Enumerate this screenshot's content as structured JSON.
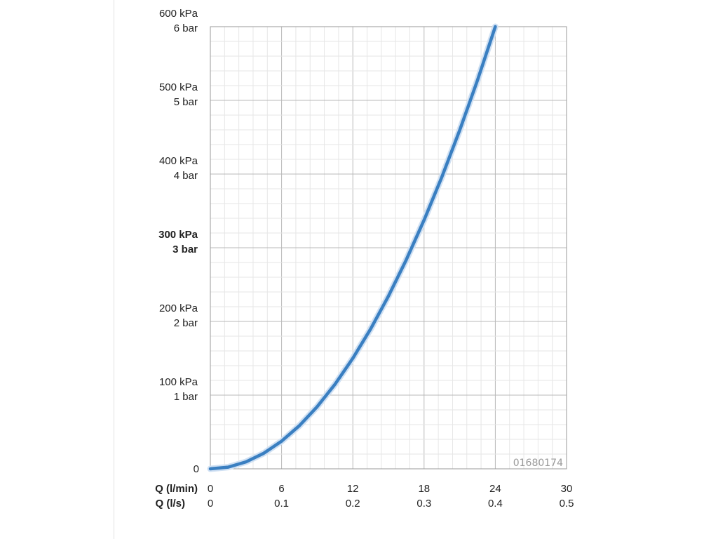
{
  "chart_data": {
    "type": "line",
    "code_label": "01680174",
    "x_primary": {
      "title": "Q (l/min)",
      "ticks": [
        "0",
        "6",
        "12",
        "18",
        "24",
        "30"
      ],
      "range": [
        0,
        30
      ]
    },
    "x_secondary": {
      "title": "Q (l/s)",
      "ticks": [
        "0",
        "0.1",
        "0.2",
        "0.3",
        "0.4",
        "0.5"
      ]
    },
    "y_axis": {
      "range": [
        0,
        600
      ],
      "unit": "kPa",
      "ticks": [
        {
          "value": 0,
          "kpa": "0",
          "bar": ""
        },
        {
          "value": 100,
          "kpa": "100 kPa",
          "bar": "1 bar"
        },
        {
          "value": 200,
          "kpa": "200 kPa",
          "bar": "2 bar"
        },
        {
          "value": 300,
          "kpa": "300 kPa",
          "bar": "3 bar",
          "bold": true
        },
        {
          "value": 400,
          "kpa": "400 kPa",
          "bar": "4 bar"
        },
        {
          "value": 500,
          "kpa": "500 kPa",
          "bar": "5 bar"
        },
        {
          "value": 600,
          "kpa": "600 kPa",
          "bar": "6 bar"
        }
      ]
    },
    "grid": true,
    "series": [
      {
        "color": "#3a7fc1",
        "x": [
          0,
          1.5,
          3,
          4.5,
          6,
          7.5,
          9,
          10.5,
          12,
          13.5,
          15,
          16.5,
          18,
          19.5,
          21,
          22.5,
          24
        ],
        "y": [
          0,
          2.3,
          9.4,
          21.1,
          37.5,
          58.6,
          84.4,
          114.8,
          150,
          189.8,
          234.4,
          283.6,
          337.5,
          396.1,
          459.4,
          527.3,
          600
        ]
      }
    ]
  }
}
